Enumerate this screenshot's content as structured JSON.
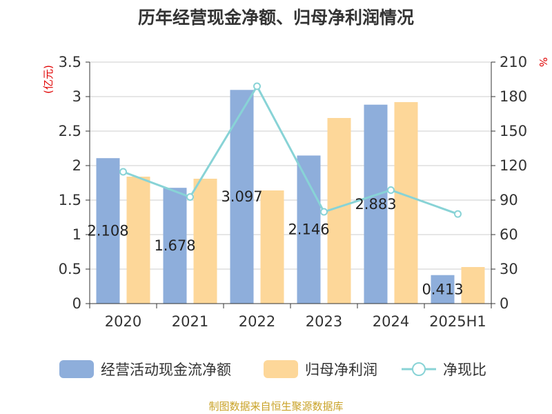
{
  "chart_data": {
    "type": "bar",
    "title": "历年经营现金净额、归母净利润情况",
    "categories": [
      "2020",
      "2021",
      "2022",
      "2023",
      "2024",
      "2025H1"
    ],
    "y_left": {
      "unit": "(亿元)",
      "ylim": [
        0,
        3.5
      ],
      "ticks": [
        "0",
        "0.5",
        "1",
        "1.5",
        "2",
        "2.5",
        "3",
        "3.5"
      ]
    },
    "y_right": {
      "unit": "%",
      "ylim": [
        0,
        210
      ],
      "ticks": [
        "0",
        "30",
        "60",
        "90",
        "120",
        "150",
        "180",
        "210"
      ]
    },
    "series": [
      {
        "name": "经营活动现金流净额",
        "kind": "bar",
        "axis": "left",
        "color": "#8eaedb",
        "values": [
          2.108,
          1.678,
          3.097,
          2.146,
          2.883,
          0.413
        ],
        "labels": [
          "2.108",
          "1.678",
          "3.097",
          "2.146",
          "2.883",
          "0.413"
        ]
      },
      {
        "name": "归母净利润",
        "kind": "bar",
        "axis": "left",
        "color": "#fdd799",
        "values": [
          1.84,
          1.81,
          1.64,
          2.69,
          2.92,
          0.53
        ]
      },
      {
        "name": "净现比",
        "kind": "line",
        "axis": "right",
        "color": "#88d3d6",
        "values": [
          114.6,
          92.7,
          189.0,
          79.8,
          98.7,
          77.9
        ]
      }
    ],
    "grid": true,
    "legend": "bottom"
  },
  "source": "制图数据来自恒生聚源数据库"
}
